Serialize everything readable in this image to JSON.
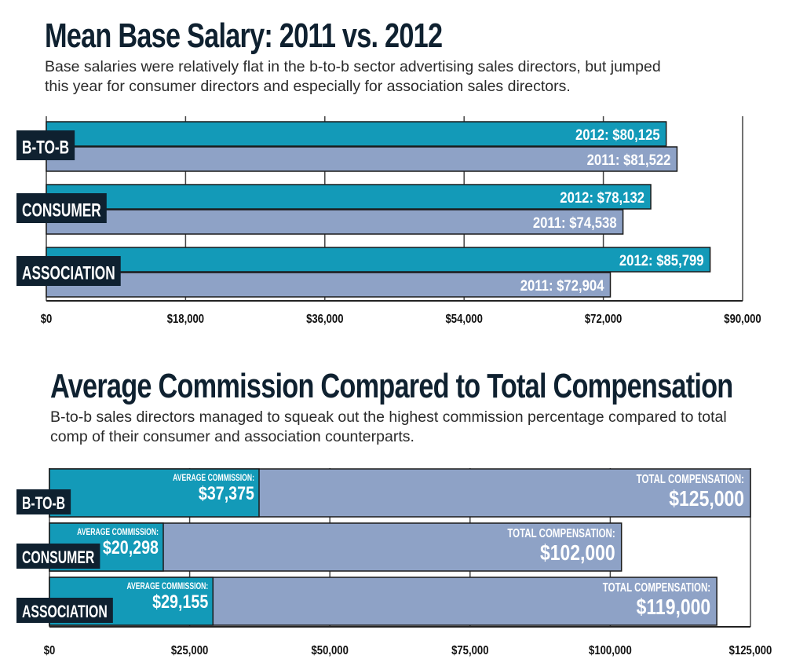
{
  "charts": [
    {
      "title": "Mean Base Salary: 2011 vs. 2012",
      "subtitle": "Base salaries were relatively flat in the b-to-b sector advertising sales directors, but jumped this year for consumer directors and especially for association sales directors."
    },
    {
      "title": "Average Commission Compared to Total Compensation",
      "subtitle": "B-to-b sales directors managed to squeak out the highest commission percentage compared to total comp of their consumer and association counterparts."
    }
  ],
  "colors": {
    "teal": "#139ab8",
    "slate": "#8ea2c6",
    "label_bg": "#0f2130",
    "grid": "#444444"
  },
  "chart_data": [
    {
      "type": "bar",
      "orientation": "horizontal",
      "title": "Mean Base Salary: 2011 vs. 2012",
      "categories": [
        "B-TO-B",
        "CONSUMER",
        "ASSOCIATION"
      ],
      "series": [
        {
          "name": "2012",
          "values": [
            80125,
            78132,
            85799
          ],
          "labels": [
            "2012: $80,125",
            "2012: $78,132",
            "2012: $85,799"
          ],
          "color": "#139ab8"
        },
        {
          "name": "2011",
          "values": [
            81522,
            74538,
            72904
          ],
          "labels": [
            "2011: $81,522",
            "2011: $74,538",
            "2011: $72,904"
          ],
          "color": "#8ea2c6"
        }
      ],
      "xlim": [
        0,
        90000
      ],
      "ticks": [
        0,
        18000,
        36000,
        54000,
        72000,
        90000
      ],
      "tick_labels": [
        "$0",
        "$18,000",
        "$36,000",
        "$54,000",
        "$72,000",
        "$90,000"
      ],
      "grid": true
    },
    {
      "type": "bar",
      "orientation": "horizontal",
      "stacked": "overlay",
      "title": "Average Commission Compared to Total Compensation",
      "categories": [
        "B-TO-B",
        "CONSUMER",
        "ASSOCIATION"
      ],
      "series": [
        {
          "name": "AVERAGE COMMISSION:",
          "values": [
            37375,
            20298,
            29155
          ],
          "labels": [
            "$37,375",
            "$20,298",
            "$29,155"
          ],
          "color": "#139ab8"
        },
        {
          "name": "TOTAL COMPENSATION:",
          "values": [
            125000,
            102000,
            119000
          ],
          "labels": [
            "$125,000",
            "$102,000",
            "$119,000"
          ],
          "color": "#8ea2c6"
        }
      ],
      "xlim": [
        0,
        125000
      ],
      "ticks": [
        0,
        25000,
        50000,
        75000,
        100000,
        125000
      ],
      "tick_labels": [
        "$0",
        "$25,000",
        "$50,000",
        "$75,000",
        "$100,000",
        "$125,000"
      ],
      "grid": true
    }
  ]
}
